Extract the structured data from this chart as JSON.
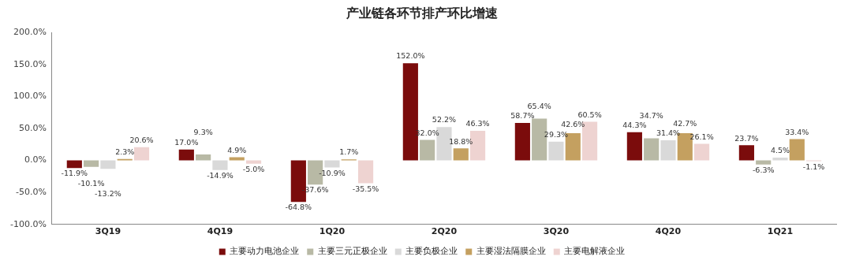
{
  "chart_data": {
    "type": "bar",
    "title": "产业链各环节排产环比增速",
    "categories": [
      "3Q19",
      "4Q19",
      "1Q20",
      "2Q20",
      "3Q20",
      "4Q20",
      "1Q21"
    ],
    "series": [
      {
        "name": "主要动力电池企业",
        "color": "#7b0c0c",
        "values": [
          -11.9,
          17.0,
          -64.8,
          152.0,
          58.7,
          44.3,
          23.7
        ],
        "value_labels": [
          "-11.9%",
          "17.0%",
          "-64.8%",
          "152.0%",
          "58.7%",
          "44.3%",
          "23.7%"
        ]
      },
      {
        "name": "主要三元正极企业",
        "color": "#b8b9a5",
        "values": [
          -10.1,
          9.3,
          -37.6,
          32.0,
          65.4,
          34.7,
          -6.3
        ],
        "value_labels": [
          "-10.1%",
          "9.3%",
          "-37.6%",
          "32.0%",
          "65.4%",
          "34.7%",
          "-6.3%"
        ]
      },
      {
        "name": "主要负极企业",
        "color": "#d9d9d9",
        "values": [
          -13.2,
          -14.9,
          -10.9,
          52.2,
          29.3,
          31.4,
          4.5
        ],
        "value_labels": [
          "-13.2%",
          "-14.9%",
          "-10.9%",
          "52.2%",
          "29.3%",
          "31.4%",
          "4.5%"
        ]
      },
      {
        "name": "主要湿法隔膜企业",
        "color": "#c4a060",
        "values": [
          2.3,
          4.9,
          1.7,
          18.8,
          42.6,
          42.7,
          33.4
        ],
        "value_labels": [
          "2.3%",
          "4.9%",
          "1.7%",
          "18.8%",
          "42.6%",
          "42.7%",
          "33.4%"
        ]
      },
      {
        "name": "主要电解液企业",
        "color": "#eed3d1",
        "values": [
          20.6,
          -5.0,
          -35.5,
          46.3,
          60.5,
          26.1,
          -1.1
        ],
        "value_labels": [
          "20.6%",
          "-5.0%",
          "-35.5%",
          "46.3%",
          "60.5%",
          "26.1%",
          "-1.1%"
        ]
      }
    ],
    "ylim": [
      -100,
      200
    ],
    "yticks": [
      {
        "value": -100,
        "label": "-100.0%"
      },
      {
        "value": -50,
        "label": "-50.0%"
      },
      {
        "value": 0,
        "label": "0.0%"
      },
      {
        "value": 50,
        "label": "50.0%"
      },
      {
        "value": 100,
        "label": "100.0%"
      },
      {
        "value": 150,
        "label": "150.0%"
      },
      {
        "value": 200,
        "label": "200.0%"
      }
    ],
    "grid": false,
    "legend": "bottom"
  }
}
